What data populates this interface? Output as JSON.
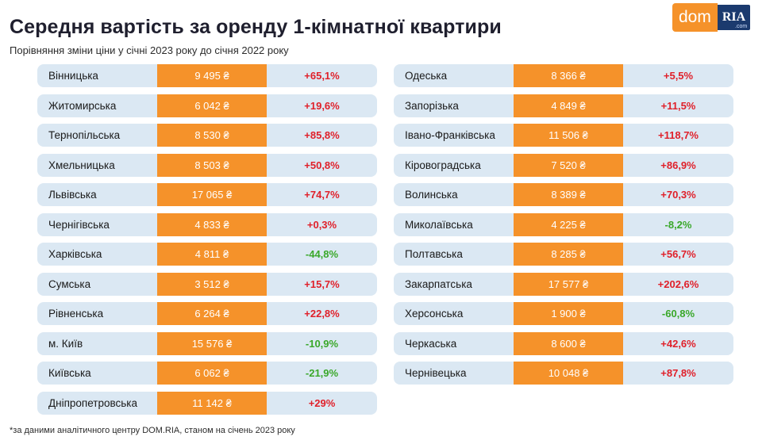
{
  "header": {
    "title": "Середня вартість за оренду 1-кімнатної квартири",
    "subtitle": "Порівняння зміни ціни у січні 2023 року до січня 2022 року"
  },
  "logo": {
    "left": "dom",
    "right": "RIA",
    "right_small": ".com"
  },
  "colors": {
    "accent": "#f5922a",
    "row_bg": "#dbe8f3",
    "positive": "#e0202a",
    "negative": "#3aa82a"
  },
  "left_rows": [
    {
      "region": "Вінницька",
      "price": "9 495 ₴",
      "change": "+65,1%",
      "sign": "pos"
    },
    {
      "region": "Житомирська",
      "price": "6 042 ₴",
      "change": "+19,6%",
      "sign": "pos"
    },
    {
      "region": "Тернопільська",
      "price": "8 530 ₴",
      "change": "+85,8%",
      "sign": "pos"
    },
    {
      "region": "Хмельницька",
      "price": "8 503 ₴",
      "change": "+50,8%",
      "sign": "pos"
    },
    {
      "region": "Львівська",
      "price": "17 065 ₴",
      "change": "+74,7%",
      "sign": "pos"
    },
    {
      "region": "Чернігівська",
      "price": "4 833 ₴",
      "change": "+0,3%",
      "sign": "pos"
    },
    {
      "region": "Харківська",
      "price": "4 811 ₴",
      "change": "-44,8%",
      "sign": "neg"
    },
    {
      "region": "Сумська",
      "price": "3 512 ₴",
      "change": "+15,7%",
      "sign": "pos"
    },
    {
      "region": "Рівненська",
      "price": "6 264 ₴",
      "change": "+22,8%",
      "sign": "pos"
    },
    {
      "region": "м. Київ",
      "price": "15 576 ₴",
      "change": "-10,9%",
      "sign": "neg"
    },
    {
      "region": "Київська",
      "price": "6 062 ₴",
      "change": "-21,9%",
      "sign": "neg"
    },
    {
      "region": "Дніпропетровська",
      "price": "11 142 ₴",
      "change": "+29%",
      "sign": "pos"
    }
  ],
  "right_rows": [
    {
      "region": "Одеська",
      "price": "8 366 ₴",
      "change": "+5,5%",
      "sign": "pos"
    },
    {
      "region": "Запорізька",
      "price": "4 849 ₴",
      "change": "+11,5%",
      "sign": "pos"
    },
    {
      "region": "Івано-Франківська",
      "price": "11 506 ₴",
      "change": "+118,7%",
      "sign": "pos"
    },
    {
      "region": "Кіровоградська",
      "price": "7 520 ₴",
      "change": "+86,9%",
      "sign": "pos"
    },
    {
      "region": "Волинська",
      "price": "8 389 ₴",
      "change": "+70,3%",
      "sign": "pos"
    },
    {
      "region": "Миколаївська",
      "price": "4 225 ₴",
      "change": "-8,2%",
      "sign": "neg"
    },
    {
      "region": "Полтавська",
      "price": "8 285 ₴",
      "change": "+56,7%",
      "sign": "pos"
    },
    {
      "region": "Закарпатська",
      "price": "17 577 ₴",
      "change": "+202,6%",
      "sign": "pos"
    },
    {
      "region": "Херсонська",
      "price": "1 900 ₴",
      "change": "-60,8%",
      "sign": "neg"
    },
    {
      "region": "Черкаська",
      "price": "8 600 ₴",
      "change": "+42,6%",
      "sign": "pos"
    },
    {
      "region": "Чернівецька",
      "price": "10 048 ₴",
      "change": "+87,8%",
      "sign": "pos"
    }
  ],
  "footnote": "*за даними аналітичного центру DOM.RIA, станом на січень 2023 року"
}
